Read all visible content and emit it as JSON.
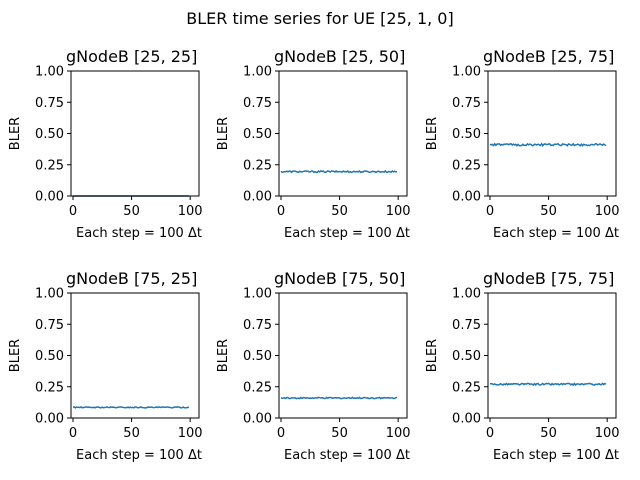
{
  "chart_data": {
    "type": "line",
    "title": "BLER time series for UE [25, 1, 0]",
    "subplots": [
      {
        "title": "gNodeB [25, 25]",
        "xlabel": "Each step = 100 Δt",
        "ylabel": "BLER",
        "xlim": [
          0,
          99
        ],
        "ylim": [
          0,
          1
        ],
        "xticks": [
          "0",
          "50",
          "100"
        ],
        "yticks": [
          "0.00",
          "0.25",
          "0.50",
          "0.75",
          "1.00"
        ],
        "line_color": "#1f4e79",
        "level": 0.0,
        "noise": 0.0
      },
      {
        "title": "gNodeB [25, 50]",
        "xlabel": "Each step = 100 Δt",
        "ylabel": "BLER",
        "xlim": [
          0,
          99
        ],
        "ylim": [
          0,
          1
        ],
        "xticks": [
          "0",
          "50",
          "100"
        ],
        "yticks": [
          "0.00",
          "0.25",
          "0.50",
          "0.75",
          "1.00"
        ],
        "line_color": "#1f77b4",
        "level": 0.195,
        "noise": 0.006
      },
      {
        "title": "gNodeB [25, 75]",
        "xlabel": "Each step = 100 Δt",
        "ylabel": "BLER",
        "xlim": [
          0,
          99
        ],
        "ylim": [
          0,
          1
        ],
        "xticks": [
          "0",
          "50",
          "100"
        ],
        "yticks": [
          "0.00",
          "0.25",
          "0.50",
          "0.75",
          "1.00"
        ],
        "line_color": "#1f77b4",
        "level": 0.41,
        "noise": 0.008
      },
      {
        "title": "gNodeB [75, 25]",
        "xlabel": "Each step = 100 Δt",
        "ylabel": "BLER",
        "xlim": [
          0,
          99
        ],
        "ylim": [
          0,
          1
        ],
        "xticks": [
          "0",
          "50",
          "100"
        ],
        "yticks": [
          "0.00",
          "0.25",
          "0.50",
          "0.75",
          "1.00"
        ],
        "line_color": "#1f77b4",
        "level": 0.085,
        "noise": 0.004
      },
      {
        "title": "gNodeB [75, 50]",
        "xlabel": "Each step = 100 Δt",
        "ylabel": "BLER",
        "xlim": [
          0,
          99
        ],
        "ylim": [
          0,
          1
        ],
        "xticks": [
          "0",
          "50",
          "100"
        ],
        "yticks": [
          "0.00",
          "0.25",
          "0.50",
          "0.75",
          "1.00"
        ],
        "line_color": "#1f77b4",
        "level": 0.16,
        "noise": 0.005
      },
      {
        "title": "gNodeB [75, 75]",
        "xlabel": "Each step = 100 Δt",
        "ylabel": "BLER",
        "xlim": [
          0,
          99
        ],
        "ylim": [
          0,
          1
        ],
        "xticks": [
          "0",
          "50",
          "100"
        ],
        "yticks": [
          "0.00",
          "0.25",
          "0.50",
          "0.75",
          "1.00"
        ],
        "line_color": "#1f77b4",
        "level": 0.27,
        "noise": 0.007
      }
    ]
  }
}
